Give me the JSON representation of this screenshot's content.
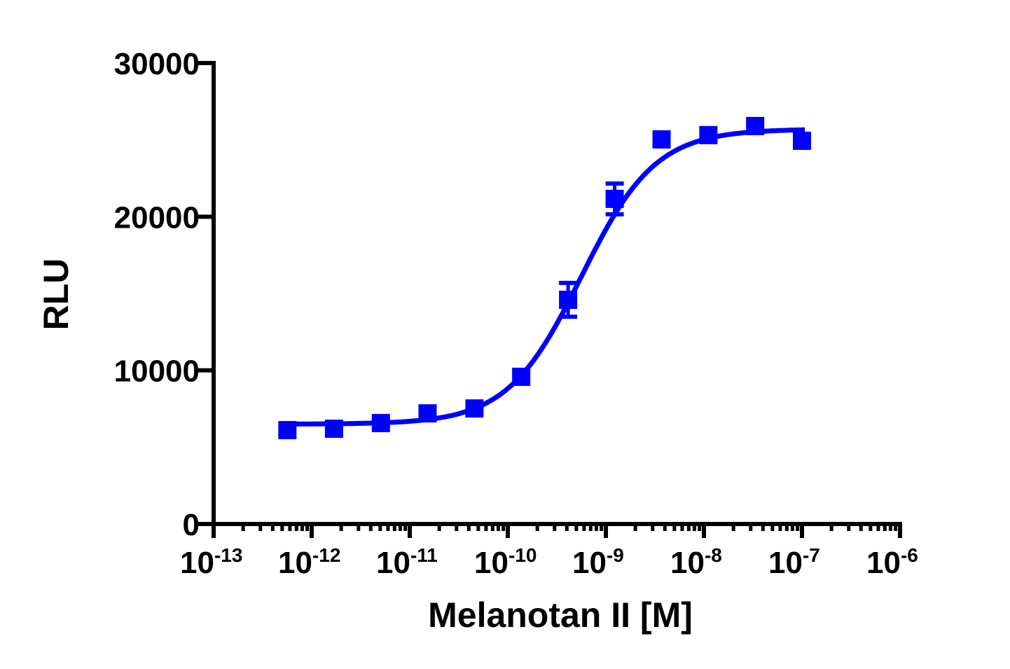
{
  "chart_data": {
    "type": "scatter",
    "title": "",
    "xlabel": "Melanotan II [M]",
    "ylabel": "RLU",
    "xscale": "log",
    "xlim": [
      1e-13,
      1e-06
    ],
    "ylim": [
      0,
      30000
    ],
    "grid": false,
    "legend": "none",
    "color": "#0000ff",
    "x_tick_base": "10",
    "x_tick_exponents": [
      "-13",
      "-12",
      "-11",
      "-10",
      "-9",
      "-8",
      "-7",
      "-6"
    ],
    "y_ticks": [
      0,
      10000,
      20000,
      30000
    ],
    "y_tick_labels": [
      "0",
      "10000",
      "20000",
      "30000"
    ],
    "series": [
      {
        "marker": "square",
        "x": [
          5.65e-13,
          1.69e-12,
          5.08e-12,
          1.52e-11,
          4.57e-11,
          1.37e-10,
          4.12e-10,
          1.23e-09,
          3.7e-09,
          1.11e-08,
          3.33e-08,
          1e-07
        ],
        "y": [
          6110,
          6200,
          6570,
          7200,
          7520,
          9580,
          14590,
          21160,
          25030,
          25310,
          25900,
          24940
        ],
        "error": [
          0,
          0,
          0,
          0,
          0,
          0,
          1100,
          1000,
          0,
          0,
          0,
          0
        ]
      }
    ],
    "fit": {
      "model": "sigmoidal dose-response",
      "bottom": 6500,
      "top": 25700,
      "logEC50": -9.25,
      "hill": 1.15
    }
  }
}
